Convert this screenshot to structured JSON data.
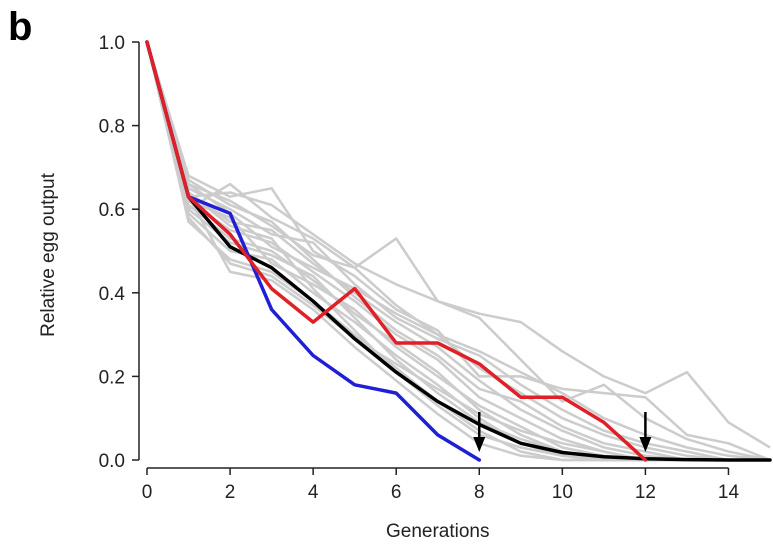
{
  "panel_label": "b",
  "chart_data": {
    "type": "line",
    "title": "",
    "xlabel": "Generations",
    "ylabel": "Relative egg output",
    "xlim": [
      0,
      15
    ],
    "ylim": [
      0,
      1.0
    ],
    "xticks": [
      0,
      2,
      4,
      6,
      8,
      10,
      12,
      14
    ],
    "yticks": [
      "0.0",
      "0.2",
      "0.4",
      "0.6",
      "0.8",
      "1.0"
    ],
    "grid": false,
    "legend": "none",
    "background_series": {
      "color": "#cccccc",
      "lines": [
        [
          [
            0,
            1.0
          ],
          [
            1,
            0.63
          ],
          [
            2,
            0.64
          ],
          [
            3,
            0.61
          ],
          [
            4,
            0.54
          ],
          [
            5,
            0.47
          ],
          [
            6,
            0.42
          ],
          [
            7,
            0.38
          ],
          [
            8,
            0.35
          ],
          [
            9,
            0.33
          ],
          [
            10,
            0.26
          ],
          [
            11,
            0.2
          ],
          [
            12,
            0.16
          ],
          [
            13,
            0.21
          ],
          [
            14,
            0.09
          ],
          [
            15,
            0.03
          ]
        ],
        [
          [
            0,
            1.0
          ],
          [
            1,
            0.6
          ],
          [
            2,
            0.66
          ],
          [
            3,
            0.58
          ],
          [
            4,
            0.53
          ],
          [
            5,
            0.46
          ],
          [
            6,
            0.53
          ],
          [
            7,
            0.38
          ],
          [
            8,
            0.34
          ],
          [
            9,
            0.24
          ],
          [
            10,
            0.14
          ],
          [
            11,
            0.18
          ],
          [
            12,
            0.1
          ],
          [
            13,
            0.05
          ],
          [
            14,
            0.02
          ],
          [
            15,
            0.0
          ]
        ],
        [
          [
            0,
            1.0
          ],
          [
            1,
            0.68
          ],
          [
            2,
            0.63
          ],
          [
            3,
            0.65
          ],
          [
            4,
            0.5
          ],
          [
            5,
            0.44
          ],
          [
            6,
            0.36
          ],
          [
            7,
            0.31
          ],
          [
            8,
            0.2
          ],
          [
            9,
            0.2
          ],
          [
            10,
            0.17
          ],
          [
            11,
            0.16
          ],
          [
            12,
            0.15
          ],
          [
            13,
            0.06
          ],
          [
            14,
            0.04
          ],
          [
            15,
            0.0
          ]
        ],
        [
          [
            0,
            1.0
          ],
          [
            1,
            0.66
          ],
          [
            2,
            0.62
          ],
          [
            3,
            0.56
          ],
          [
            4,
            0.49
          ],
          [
            5,
            0.46
          ],
          [
            6,
            0.37
          ],
          [
            7,
            0.3
          ],
          [
            8,
            0.22
          ],
          [
            9,
            0.16
          ],
          [
            10,
            0.1
          ],
          [
            11,
            0.06
          ],
          [
            12,
            0.03
          ],
          [
            13,
            0.01
          ],
          [
            14,
            0.0
          ],
          [
            15,
            0.0
          ]
        ],
        [
          [
            0,
            1.0
          ],
          [
            1,
            0.64
          ],
          [
            2,
            0.57
          ],
          [
            3,
            0.55
          ],
          [
            4,
            0.47
          ],
          [
            5,
            0.4
          ],
          [
            6,
            0.33
          ],
          [
            7,
            0.27
          ],
          [
            8,
            0.19
          ],
          [
            9,
            0.12
          ],
          [
            10,
            0.07
          ],
          [
            11,
            0.03
          ],
          [
            12,
            0.01
          ],
          [
            13,
            0.0
          ],
          [
            14,
            0.0
          ],
          [
            15,
            0.0
          ]
        ],
        [
          [
            0,
            1.0
          ],
          [
            1,
            0.62
          ],
          [
            2,
            0.55
          ],
          [
            3,
            0.52
          ],
          [
            4,
            0.45
          ],
          [
            5,
            0.38
          ],
          [
            6,
            0.3
          ],
          [
            7,
            0.24
          ],
          [
            8,
            0.15
          ],
          [
            9,
            0.1
          ],
          [
            10,
            0.05
          ],
          [
            11,
            0.02
          ],
          [
            12,
            0.0
          ],
          [
            13,
            0.0
          ],
          [
            14,
            0.0
          ],
          [
            15,
            0.0
          ]
        ],
        [
          [
            0,
            1.0
          ],
          [
            1,
            0.61
          ],
          [
            2,
            0.53
          ],
          [
            3,
            0.5
          ],
          [
            4,
            0.43
          ],
          [
            5,
            0.35
          ],
          [
            6,
            0.28
          ],
          [
            7,
            0.21
          ],
          [
            8,
            0.12
          ],
          [
            9,
            0.06
          ],
          [
            10,
            0.02
          ],
          [
            11,
            0.0
          ],
          [
            12,
            0.0
          ],
          [
            13,
            0.0
          ],
          [
            14,
            0.0
          ],
          [
            15,
            0.0
          ]
        ],
        [
          [
            0,
            1.0
          ],
          [
            1,
            0.59
          ],
          [
            2,
            0.5
          ],
          [
            3,
            0.48
          ],
          [
            4,
            0.4
          ],
          [
            5,
            0.33
          ],
          [
            6,
            0.25
          ],
          [
            7,
            0.18
          ],
          [
            8,
            0.1
          ],
          [
            9,
            0.04
          ],
          [
            10,
            0.01
          ],
          [
            11,
            0.0
          ],
          [
            12,
            0.0
          ],
          [
            13,
            0.0
          ],
          [
            14,
            0.0
          ],
          [
            15,
            0.0
          ]
        ],
        [
          [
            0,
            1.0
          ],
          [
            1,
            0.57
          ],
          [
            2,
            0.48
          ],
          [
            3,
            0.45
          ],
          [
            4,
            0.38
          ],
          [
            5,
            0.3
          ],
          [
            6,
            0.22
          ],
          [
            7,
            0.14
          ],
          [
            8,
            0.07
          ],
          [
            9,
            0.02
          ],
          [
            10,
            0.0
          ],
          [
            11,
            0.0
          ],
          [
            12,
            0.0
          ],
          [
            13,
            0.0
          ],
          [
            14,
            0.0
          ],
          [
            15,
            0.0
          ]
        ],
        [
          [
            0,
            1.0
          ],
          [
            1,
            0.63
          ],
          [
            2,
            0.45
          ],
          [
            3,
            0.43
          ],
          [
            4,
            0.36
          ],
          [
            5,
            0.27
          ],
          [
            6,
            0.19
          ],
          [
            7,
            0.11
          ],
          [
            8,
            0.04
          ],
          [
            9,
            0.01
          ],
          [
            10,
            0.0
          ],
          [
            11,
            0.0
          ],
          [
            12,
            0.0
          ],
          [
            13,
            0.0
          ],
          [
            14,
            0.0
          ],
          [
            15,
            0.0
          ]
        ],
        [
          [
            0,
            1.0
          ],
          [
            1,
            0.65
          ],
          [
            2,
            0.6
          ],
          [
            3,
            0.54
          ],
          [
            4,
            0.52
          ],
          [
            5,
            0.42
          ],
          [
            6,
            0.34
          ],
          [
            7,
            0.29
          ],
          [
            8,
            0.25
          ],
          [
            9,
            0.18
          ],
          [
            10,
            0.12
          ],
          [
            11,
            0.07
          ],
          [
            12,
            0.04
          ],
          [
            13,
            0.02
          ],
          [
            14,
            0.0
          ],
          [
            15,
            0.0
          ]
        ],
        [
          [
            0,
            1.0
          ],
          [
            1,
            0.67
          ],
          [
            2,
            0.61
          ],
          [
            3,
            0.57
          ],
          [
            4,
            0.48
          ],
          [
            5,
            0.39
          ],
          [
            6,
            0.31
          ],
          [
            7,
            0.25
          ],
          [
            8,
            0.17
          ],
          [
            9,
            0.14
          ],
          [
            10,
            0.08
          ],
          [
            11,
            0.04
          ],
          [
            12,
            0.02
          ],
          [
            13,
            0.0
          ],
          [
            14,
            0.0
          ],
          [
            15,
            0.0
          ]
        ],
        [
          [
            0,
            1.0
          ],
          [
            1,
            0.62
          ],
          [
            2,
            0.58
          ],
          [
            3,
            0.47
          ],
          [
            4,
            0.42
          ],
          [
            5,
            0.36
          ],
          [
            6,
            0.27
          ],
          [
            7,
            0.2
          ],
          [
            8,
            0.13
          ],
          [
            9,
            0.08
          ],
          [
            10,
            0.03
          ],
          [
            11,
            0.01
          ],
          [
            12,
            0.0
          ],
          [
            13,
            0.0
          ],
          [
            14,
            0.0
          ],
          [
            15,
            0.0
          ]
        ],
        [
          [
            0,
            1.0
          ],
          [
            1,
            0.6
          ],
          [
            2,
            0.52
          ],
          [
            3,
            0.49
          ],
          [
            4,
            0.44
          ],
          [
            5,
            0.34
          ],
          [
            6,
            0.24
          ],
          [
            7,
            0.16
          ],
          [
            8,
            0.09
          ],
          [
            9,
            0.05
          ],
          [
            10,
            0.02
          ],
          [
            11,
            0.0
          ],
          [
            12,
            0.0
          ],
          [
            13,
            0.0
          ],
          [
            14,
            0.0
          ],
          [
            15,
            0.0
          ]
        ],
        [
          [
            0,
            1.0
          ],
          [
            1,
            0.64
          ],
          [
            2,
            0.56
          ],
          [
            3,
            0.53
          ],
          [
            4,
            0.41
          ],
          [
            5,
            0.31
          ],
          [
            6,
            0.21
          ],
          [
            7,
            0.13
          ],
          [
            8,
            0.06
          ],
          [
            9,
            0.03
          ],
          [
            10,
            0.01
          ],
          [
            11,
            0.0
          ],
          [
            12,
            0.0
          ],
          [
            13,
            0.0
          ],
          [
            14,
            0.0
          ],
          [
            15,
            0.0
          ]
        ],
        [
          [
            0,
            1.0
          ],
          [
            1,
            0.58
          ],
          [
            2,
            0.47
          ],
          [
            3,
            0.44
          ],
          [
            4,
            0.37
          ],
          [
            5,
            0.29
          ],
          [
            6,
            0.23
          ],
          [
            7,
            0.17
          ],
          [
            8,
            0.11
          ],
          [
            9,
            0.07
          ],
          [
            10,
            0.04
          ],
          [
            11,
            0.02
          ],
          [
            12,
            0.0
          ],
          [
            13,
            0.0
          ],
          [
            14,
            0.0
          ],
          [
            15,
            0.0
          ]
        ],
        [
          [
            0,
            1.0
          ],
          [
            1,
            0.66
          ],
          [
            2,
            0.59
          ],
          [
            3,
            0.51
          ],
          [
            4,
            0.46
          ],
          [
            5,
            0.41
          ],
          [
            6,
            0.35
          ],
          [
            7,
            0.3
          ],
          [
            8,
            0.26
          ],
          [
            9,
            0.21
          ],
          [
            10,
            0.16
          ],
          [
            11,
            0.1
          ],
          [
            12,
            0.06
          ],
          [
            13,
            0.03
          ],
          [
            14,
            0.01
          ],
          [
            15,
            0.0
          ]
        ]
      ]
    },
    "series": [
      {
        "color": "#000000",
        "x": [
          0,
          1,
          2,
          3,
          4,
          5,
          6,
          7,
          8,
          9,
          10,
          11,
          12,
          13,
          14,
          15
        ],
        "values": [
          1.0,
          0.63,
          0.51,
          0.46,
          0.38,
          0.29,
          0.21,
          0.14,
          0.085,
          0.04,
          0.018,
          0.008,
          0.003,
          0.001,
          0.0,
          0.0
        ]
      },
      {
        "color": "#1f1fd6",
        "x": [
          0,
          1,
          2,
          3,
          4,
          5,
          6,
          7,
          8
        ],
        "values": [
          1.0,
          0.63,
          0.59,
          0.36,
          0.25,
          0.18,
          0.16,
          0.06,
          0.0
        ]
      },
      {
        "color": "#e01f26",
        "x": [
          0,
          1,
          2,
          3,
          4,
          5,
          6,
          7,
          8,
          9,
          10,
          11,
          12
        ],
        "values": [
          1.0,
          0.63,
          0.54,
          0.41,
          0.33,
          0.41,
          0.28,
          0.28,
          0.23,
          0.15,
          0.15,
          0.09,
          0.0
        ]
      }
    ],
    "annotations": [
      {
        "type": "arrow-down",
        "x": 8
      },
      {
        "type": "arrow-down",
        "x": 12
      }
    ]
  }
}
